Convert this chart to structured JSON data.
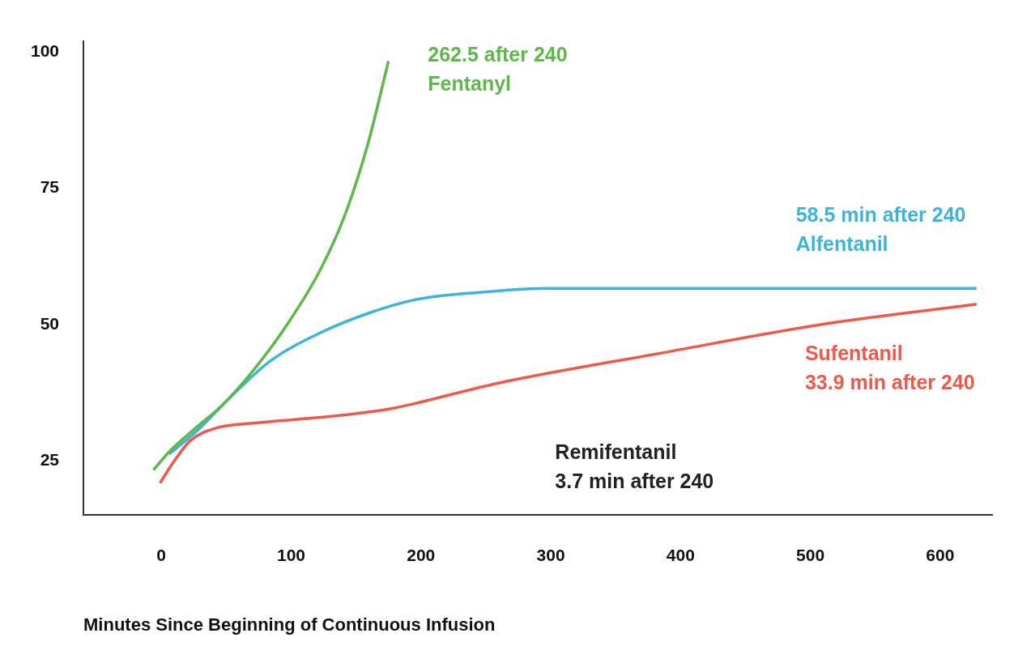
{
  "chart_data": {
    "type": "line",
    "xlabel": "Minutes Since Beginning of Continuous Infusion",
    "xlim": [
      -60,
      640
    ],
    "xticks": [
      0,
      100,
      200,
      300,
      400,
      500,
      600
    ],
    "ylim": [
      15,
      102
    ],
    "yticks": [
      25,
      50,
      75,
      100
    ],
    "grid": false,
    "legend": false,
    "marker": "none",
    "line_style": "solid",
    "series": [
      {
        "color": "#5db84a",
        "x": [
          -6,
          6,
          28,
          47,
          72,
          97,
          122,
          141,
          159,
          175
        ],
        "values": [
          23.3,
          26.6,
          31.3,
          35.2,
          41.9,
          50,
          59.8,
          69.8,
          83,
          98.3
        ]
      },
      {
        "color": "#3cb4dc",
        "x": [
          6,
          28,
          53,
          84,
          122,
          159,
          197,
          247,
          297,
          384,
          509,
          628
        ],
        "values": [
          26.2,
          30.6,
          36.6,
          43.3,
          48.4,
          52,
          54.6,
          55.9,
          56.6,
          56.6,
          56.6,
          56.6
        ]
      },
      {
        "color": "#f0584a",
        "x": [
          -1,
          9,
          22,
          41,
          72,
          134,
          178,
          259,
          384,
          509,
          628
        ],
        "values": [
          20.9,
          24.6,
          28.6,
          30.9,
          31.9,
          33.2,
          34.6,
          39.2,
          44.7,
          50,
          53.7
        ]
      }
    ],
    "annotations": [
      "262.5 after 240\nFentanyl",
      "58.5 min after 240\nAlfentanil",
      "Sufentanil\n33.9 min after 240",
      "Remifentanil\n3.7 min after 240"
    ]
  }
}
